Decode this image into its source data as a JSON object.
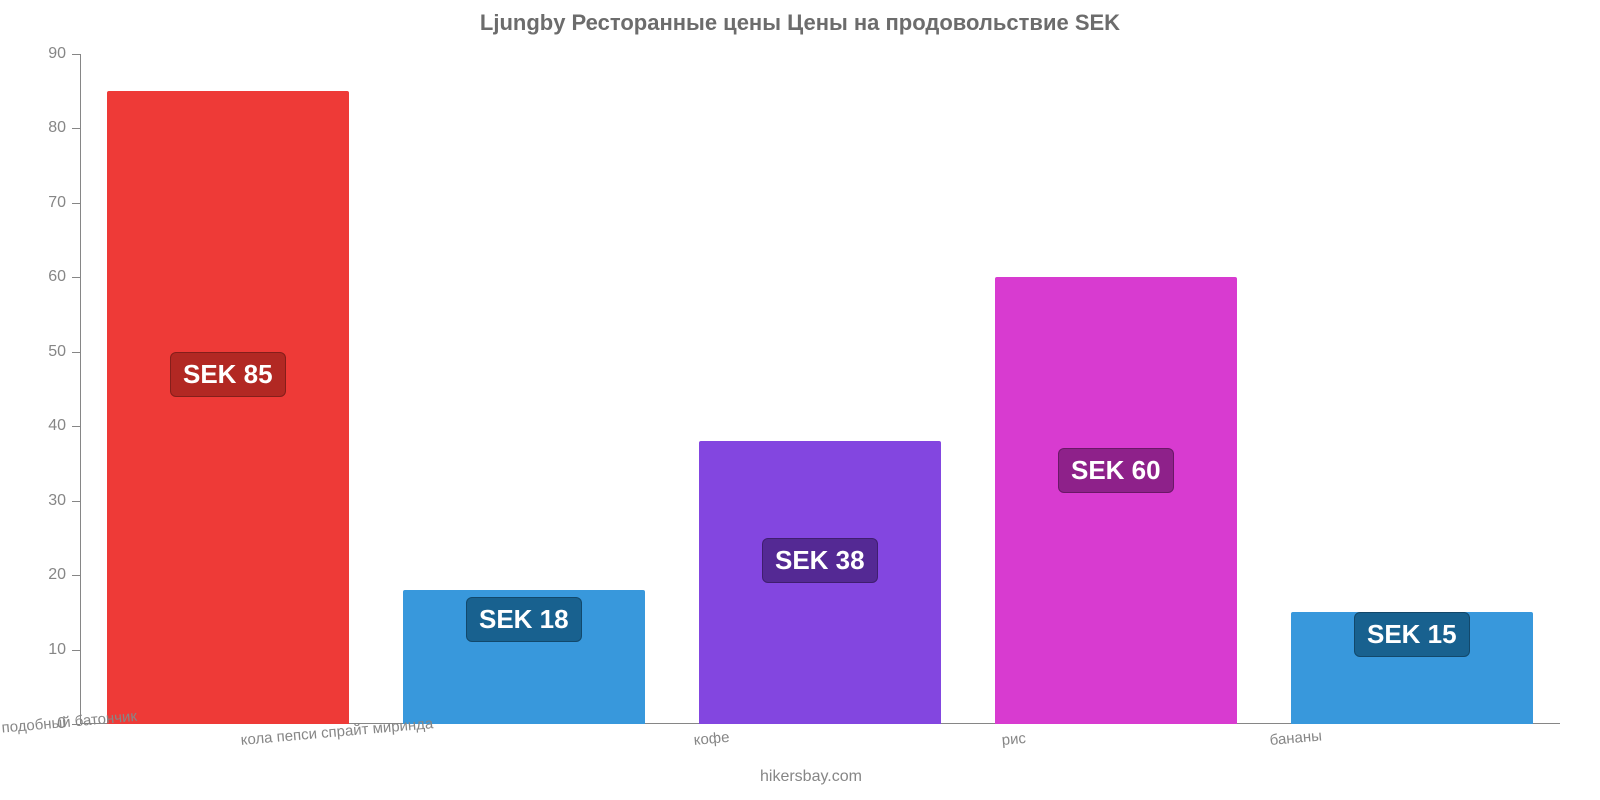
{
  "chart": {
    "type": "bar",
    "title": "Ljungby Ресторанные цены Цены на продовольствие SEK",
    "title_fontsize": 22,
    "title_color": "#6c6c6c",
    "background_color": "#ffffff",
    "axis_color": "#868686",
    "tick_label_fontsize": 16,
    "tick_label_color": "#868686",
    "category_label_fontsize": 15,
    "category_label_color": "#868686",
    "ylim": [
      0,
      90
    ],
    "ytick_step": 10,
    "bar_width_ratio": 0.82,
    "value_label_fontsize": 26,
    "value_label_text_color": "#ffffff",
    "categories": [
      "mac burger king или подобный батончик",
      "кола пепси спрайт миринда",
      "кофе",
      "рис",
      "бананы"
    ],
    "values": [
      85,
      18,
      38,
      60,
      15
    ],
    "value_labels": [
      "SEK 85",
      "SEK 18",
      "SEK 38",
      "SEK 60",
      "SEK 15"
    ],
    "bar_colors": [
      "#ee3a37",
      "#3898dc",
      "#8346e0",
      "#d83bd0",
      "#3898dc"
    ],
    "badge_colors": [
      "#b22823",
      "#18618f",
      "#542994",
      "#8e218a",
      "#18618f"
    ],
    "credit": "hikersbay.com",
    "credit_color": "#868686",
    "credit_fontsize": 16
  }
}
